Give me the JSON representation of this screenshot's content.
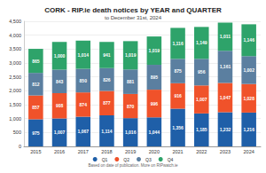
{
  "chart_data": {
    "type": "bar",
    "title": "CORK - RIP.ie death notices by YEAR and QUARTER",
    "subtitle": "to December 31st, 2024",
    "annotations": [
      "Based on date of publication. More on RIPwatch.ie"
    ],
    "categories": [
      "2015",
      "2016",
      "2017",
      "2018",
      "2019",
      "2020",
      "2021",
      "2022",
      "2023",
      "2024"
    ],
    "series": [
      {
        "name": "Q1",
        "color": "#1f5fa8",
        "values": [
          975,
          1007,
          1067,
          1114,
          1016,
          1044,
          1356,
          1185,
          1232,
          1216
        ],
        "value_labels": [
          "975",
          "1,007",
          "1,067",
          "1,114",
          "1,016",
          "1,044",
          "1,356",
          "1,185",
          "1,232",
          "1,216"
        ]
      },
      {
        "name": "Q2",
        "color": "#f0522a",
        "values": [
          857,
          908,
          874,
          877,
          870,
          996,
          916,
          1007,
          1047,
          1028
        ],
        "value_labels": [
          "857",
          "908",
          "874",
          "877",
          "870",
          "996",
          "916",
          "1,007",
          "1,047",
          "1,028"
        ]
      },
      {
        "name": "Q3",
        "color": "#5b7fa0",
        "values": [
          812,
          843,
          850,
          826,
          881,
          895,
          875,
          956,
          1161,
          1002
        ],
        "value_labels": [
          "812",
          "843",
          "850",
          "826",
          "881",
          "895",
          "875",
          "956",
          "1,161",
          "1,002"
        ]
      },
      {
        "name": "Q4",
        "color": "#2ea36a",
        "values": [
          865,
          1000,
          1014,
          941,
          1019,
          1019,
          1116,
          1149,
          1011,
          1146
        ],
        "value_labels": [
          "865",
          "1,000",
          "1,014",
          "941",
          "1,019",
          "1,019",
          "1,116",
          "1,149",
          "1,011",
          "1,146"
        ]
      }
    ],
    "ylim": [
      0,
      4500
    ],
    "yticks": [
      0,
      500,
      {
        "value": 1000,
        "label": "1,000"
      },
      {
        "value": 1500,
        "label": "1,500"
      },
      {
        "value": 2000,
        "label": "2,000"
      },
      {
        "value": 2500,
        "label": "2,500"
      },
      {
        "value": 3000,
        "label": "3,000"
      },
      {
        "value": 3500,
        "label": "3,500"
      },
      {
        "value": 4000,
        "label": "4,000"
      },
      {
        "value": 4500,
        "label": "4,500"
      }
    ],
    "stacked": true,
    "data_labels": true,
    "grid": true,
    "legend": "bottom"
  }
}
